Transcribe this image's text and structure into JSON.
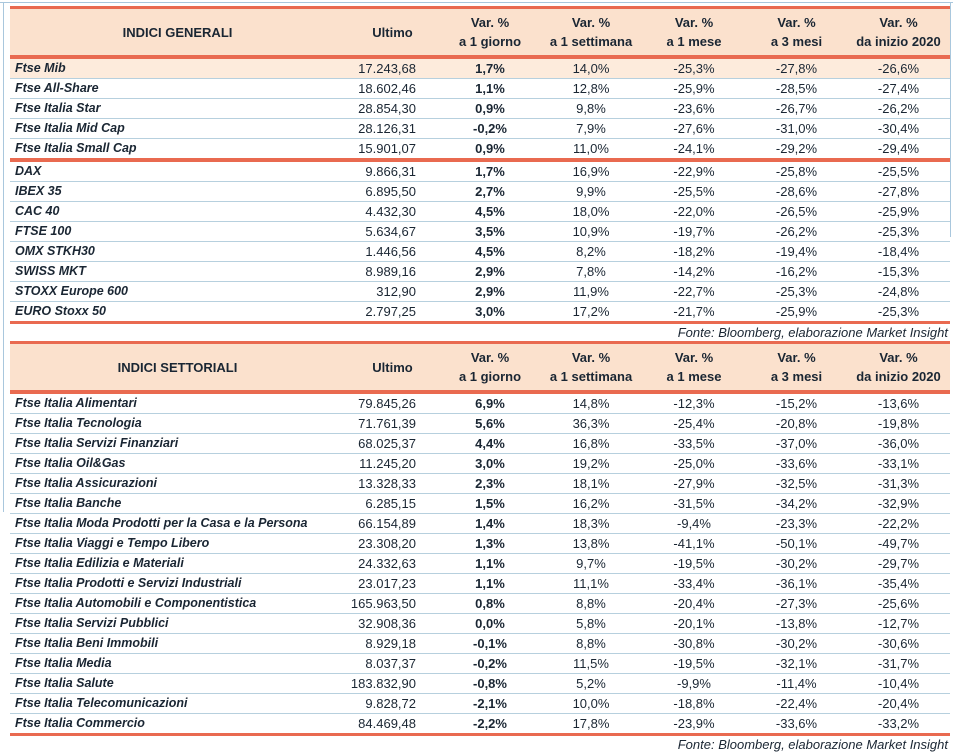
{
  "colors": {
    "accent_red": "#e96a50",
    "header_background": "#fbe1cd",
    "highlight_row_background": "#fdebdc",
    "row_separator": "#b7d0de",
    "text": "#1a2633",
    "page_edge": "#a9c7dd"
  },
  "source_note": "Fonte: Bloomberg, elaborazione Market Insight",
  "column_headers": {
    "ultimo": "Ultimo",
    "variation_columns": [
      {
        "line1": "Var. %",
        "line2": "a 1 giorno"
      },
      {
        "line1": "Var. %",
        "line2": "a 1 settimana"
      },
      {
        "line1": "Var. %",
        "line2": "a 1 mese"
      },
      {
        "line1": "Var. %",
        "line2": "a 3 mesi"
      },
      {
        "line1": "Var. %",
        "line2": "da inizio 2020"
      }
    ]
  },
  "tables": [
    {
      "title": "INDICI GENERALI",
      "sections": [
        {
          "rows": [
            {
              "name": "Ftse Mib",
              "ultimo": "17.243,68",
              "values": [
                "1,7%",
                "14,0%",
                "-25,3%",
                "-27,8%",
                "-26,6%"
              ],
              "highlight": true
            },
            {
              "name": "Ftse All-Share",
              "ultimo": "18.602,46",
              "values": [
                "1,1%",
                "12,8%",
                "-25,9%",
                "-28,5%",
                "-27,4%"
              ],
              "highlight": false
            },
            {
              "name": "Ftse Italia Star",
              "ultimo": "28.854,30",
              "values": [
                "0,9%",
                "9,8%",
                "-23,6%",
                "-26,7%",
                "-26,2%"
              ],
              "highlight": false
            },
            {
              "name": "Ftse Italia Mid Cap",
              "ultimo": "28.126,31",
              "values": [
                "-0,2%",
                "7,9%",
                "-27,6%",
                "-31,0%",
                "-30,4%"
              ],
              "highlight": false
            },
            {
              "name": "Ftse Italia Small Cap",
              "ultimo": "15.901,07",
              "values": [
                "0,9%",
                "11,0%",
                "-24,1%",
                "-29,2%",
                "-29,4%"
              ],
              "highlight": false
            }
          ]
        },
        {
          "rows": [
            {
              "name": "DAX",
              "ultimo": "9.866,31",
              "values": [
                "1,7%",
                "16,9%",
                "-22,9%",
                "-25,8%",
                "-25,5%"
              ],
              "highlight": false
            },
            {
              "name": "IBEX 35",
              "ultimo": "6.895,50",
              "values": [
                "2,7%",
                "9,9%",
                "-25,5%",
                "-28,6%",
                "-27,8%"
              ],
              "highlight": false
            },
            {
              "name": "CAC 40",
              "ultimo": "4.432,30",
              "values": [
                "4,5%",
                "18,0%",
                "-22,0%",
                "-26,5%",
                "-25,9%"
              ],
              "highlight": false
            },
            {
              "name": "FTSE 100",
              "ultimo": "5.634,67",
              "values": [
                "3,5%",
                "10,9%",
                "-19,7%",
                "-26,2%",
                "-25,3%"
              ],
              "highlight": false
            },
            {
              "name": "OMX STKH30",
              "ultimo": "1.446,56",
              "values": [
                "4,5%",
                "8,2%",
                "-18,2%",
                "-19,4%",
                "-18,4%"
              ],
              "highlight": false
            },
            {
              "name": "SWISS MKT",
              "ultimo": "8.989,16",
              "values": [
                "2,9%",
                "7,8%",
                "-14,2%",
                "-16,2%",
                "-15,3%"
              ],
              "highlight": false
            },
            {
              "name": "STOXX Europe 600",
              "ultimo": "312,90",
              "values": [
                "2,9%",
                "11,9%",
                "-22,7%",
                "-25,3%",
                "-24,8%"
              ],
              "highlight": false
            },
            {
              "name": "EURO Stoxx 50",
              "ultimo": "2.797,25",
              "values": [
                "3,0%",
                "17,2%",
                "-21,7%",
                "-25,9%",
                "-25,3%"
              ],
              "highlight": false
            }
          ]
        }
      ]
    },
    {
      "title": "INDICI SETTORIALI",
      "sections": [
        {
          "rows": [
            {
              "name": "Ftse Italia Alimentari",
              "ultimo": "79.845,26",
              "values": [
                "6,9%",
                "14,8%",
                "-12,3%",
                "-15,2%",
                "-13,6%"
              ],
              "highlight": false
            },
            {
              "name": "Ftse Italia Tecnologia",
              "ultimo": "71.761,39",
              "values": [
                "5,6%",
                "36,3%",
                "-25,4%",
                "-20,8%",
                "-19,8%"
              ],
              "highlight": false
            },
            {
              "name": "Ftse Italia Servizi Finanziari",
              "ultimo": "68.025,37",
              "values": [
                "4,4%",
                "16,8%",
                "-33,5%",
                "-37,0%",
                "-36,0%"
              ],
              "highlight": false
            },
            {
              "name": "Ftse Italia Oil&Gas",
              "ultimo": "11.245,20",
              "values": [
                "3,0%",
                "19,2%",
                "-25,0%",
                "-33,6%",
                "-33,1%"
              ],
              "highlight": false
            },
            {
              "name": "Ftse Italia Assicurazioni",
              "ultimo": "13.328,33",
              "values": [
                "2,3%",
                "18,1%",
                "-27,9%",
                "-32,5%",
                "-31,3%"
              ],
              "highlight": false
            },
            {
              "name": "Ftse Italia Banche",
              "ultimo": "6.285,15",
              "values": [
                "1,5%",
                "16,2%",
                "-31,5%",
                "-34,2%",
                "-32,9%"
              ],
              "highlight": false
            },
            {
              "name": "Ftse Italia Moda Prodotti per la Casa e la Persona",
              "ultimo": "66.154,89",
              "values": [
                "1,4%",
                "18,3%",
                "-9,4%",
                "-23,3%",
                "-22,2%"
              ],
              "highlight": false
            },
            {
              "name": "Ftse Italia Viaggi e Tempo Libero",
              "ultimo": "23.308,20",
              "values": [
                "1,3%",
                "13,8%",
                "-41,1%",
                "-50,1%",
                "-49,7%"
              ],
              "highlight": false
            },
            {
              "name": "Ftse Italia Edilizia e Materiali",
              "ultimo": "24.332,63",
              "values": [
                "1,1%",
                "9,7%",
                "-19,5%",
                "-30,2%",
                "-29,7%"
              ],
              "highlight": false
            },
            {
              "name": "Ftse Italia Prodotti e Servizi Industriali",
              "ultimo": "23.017,23",
              "values": [
                "1,1%",
                "11,1%",
                "-33,4%",
                "-36,1%",
                "-35,4%"
              ],
              "highlight": false
            },
            {
              "name": "Ftse Italia Automobili e Componentistica",
              "ultimo": "165.963,50",
              "values": [
                "0,8%",
                "8,8%",
                "-20,4%",
                "-27,3%",
                "-25,6%"
              ],
              "highlight": false
            },
            {
              "name": "Ftse Italia Servizi Pubblici",
              "ultimo": "32.908,36",
              "values": [
                "0,0%",
                "5,8%",
                "-20,1%",
                "-13,8%",
                "-12,7%"
              ],
              "highlight": false
            },
            {
              "name": "Ftse Italia Beni Immobili",
              "ultimo": "8.929,18",
              "values": [
                "-0,1%",
                "8,8%",
                "-30,8%",
                "-30,2%",
                "-30,6%"
              ],
              "highlight": false
            },
            {
              "name": "Ftse Italia Media",
              "ultimo": "8.037,37",
              "values": [
                "-0,2%",
                "11,5%",
                "-19,5%",
                "-32,1%",
                "-31,7%"
              ],
              "highlight": false
            },
            {
              "name": "Ftse Italia Salute",
              "ultimo": "183.832,90",
              "values": [
                "-0,8%",
                "5,2%",
                "-9,9%",
                "-11,4%",
                "-10,4%"
              ],
              "highlight": false
            },
            {
              "name": "Ftse Italia Telecomunicazioni",
              "ultimo": "9.828,72",
              "values": [
                "-2,1%",
                "10,0%",
                "-18,8%",
                "-22,4%",
                "-20,4%"
              ],
              "highlight": false
            },
            {
              "name": "Ftse Italia Commercio",
              "ultimo": "84.469,48",
              "values": [
                "-2,2%",
                "17,8%",
                "-23,9%",
                "-33,6%",
                "-33,2%"
              ],
              "highlight": false
            }
          ]
        }
      ]
    }
  ]
}
